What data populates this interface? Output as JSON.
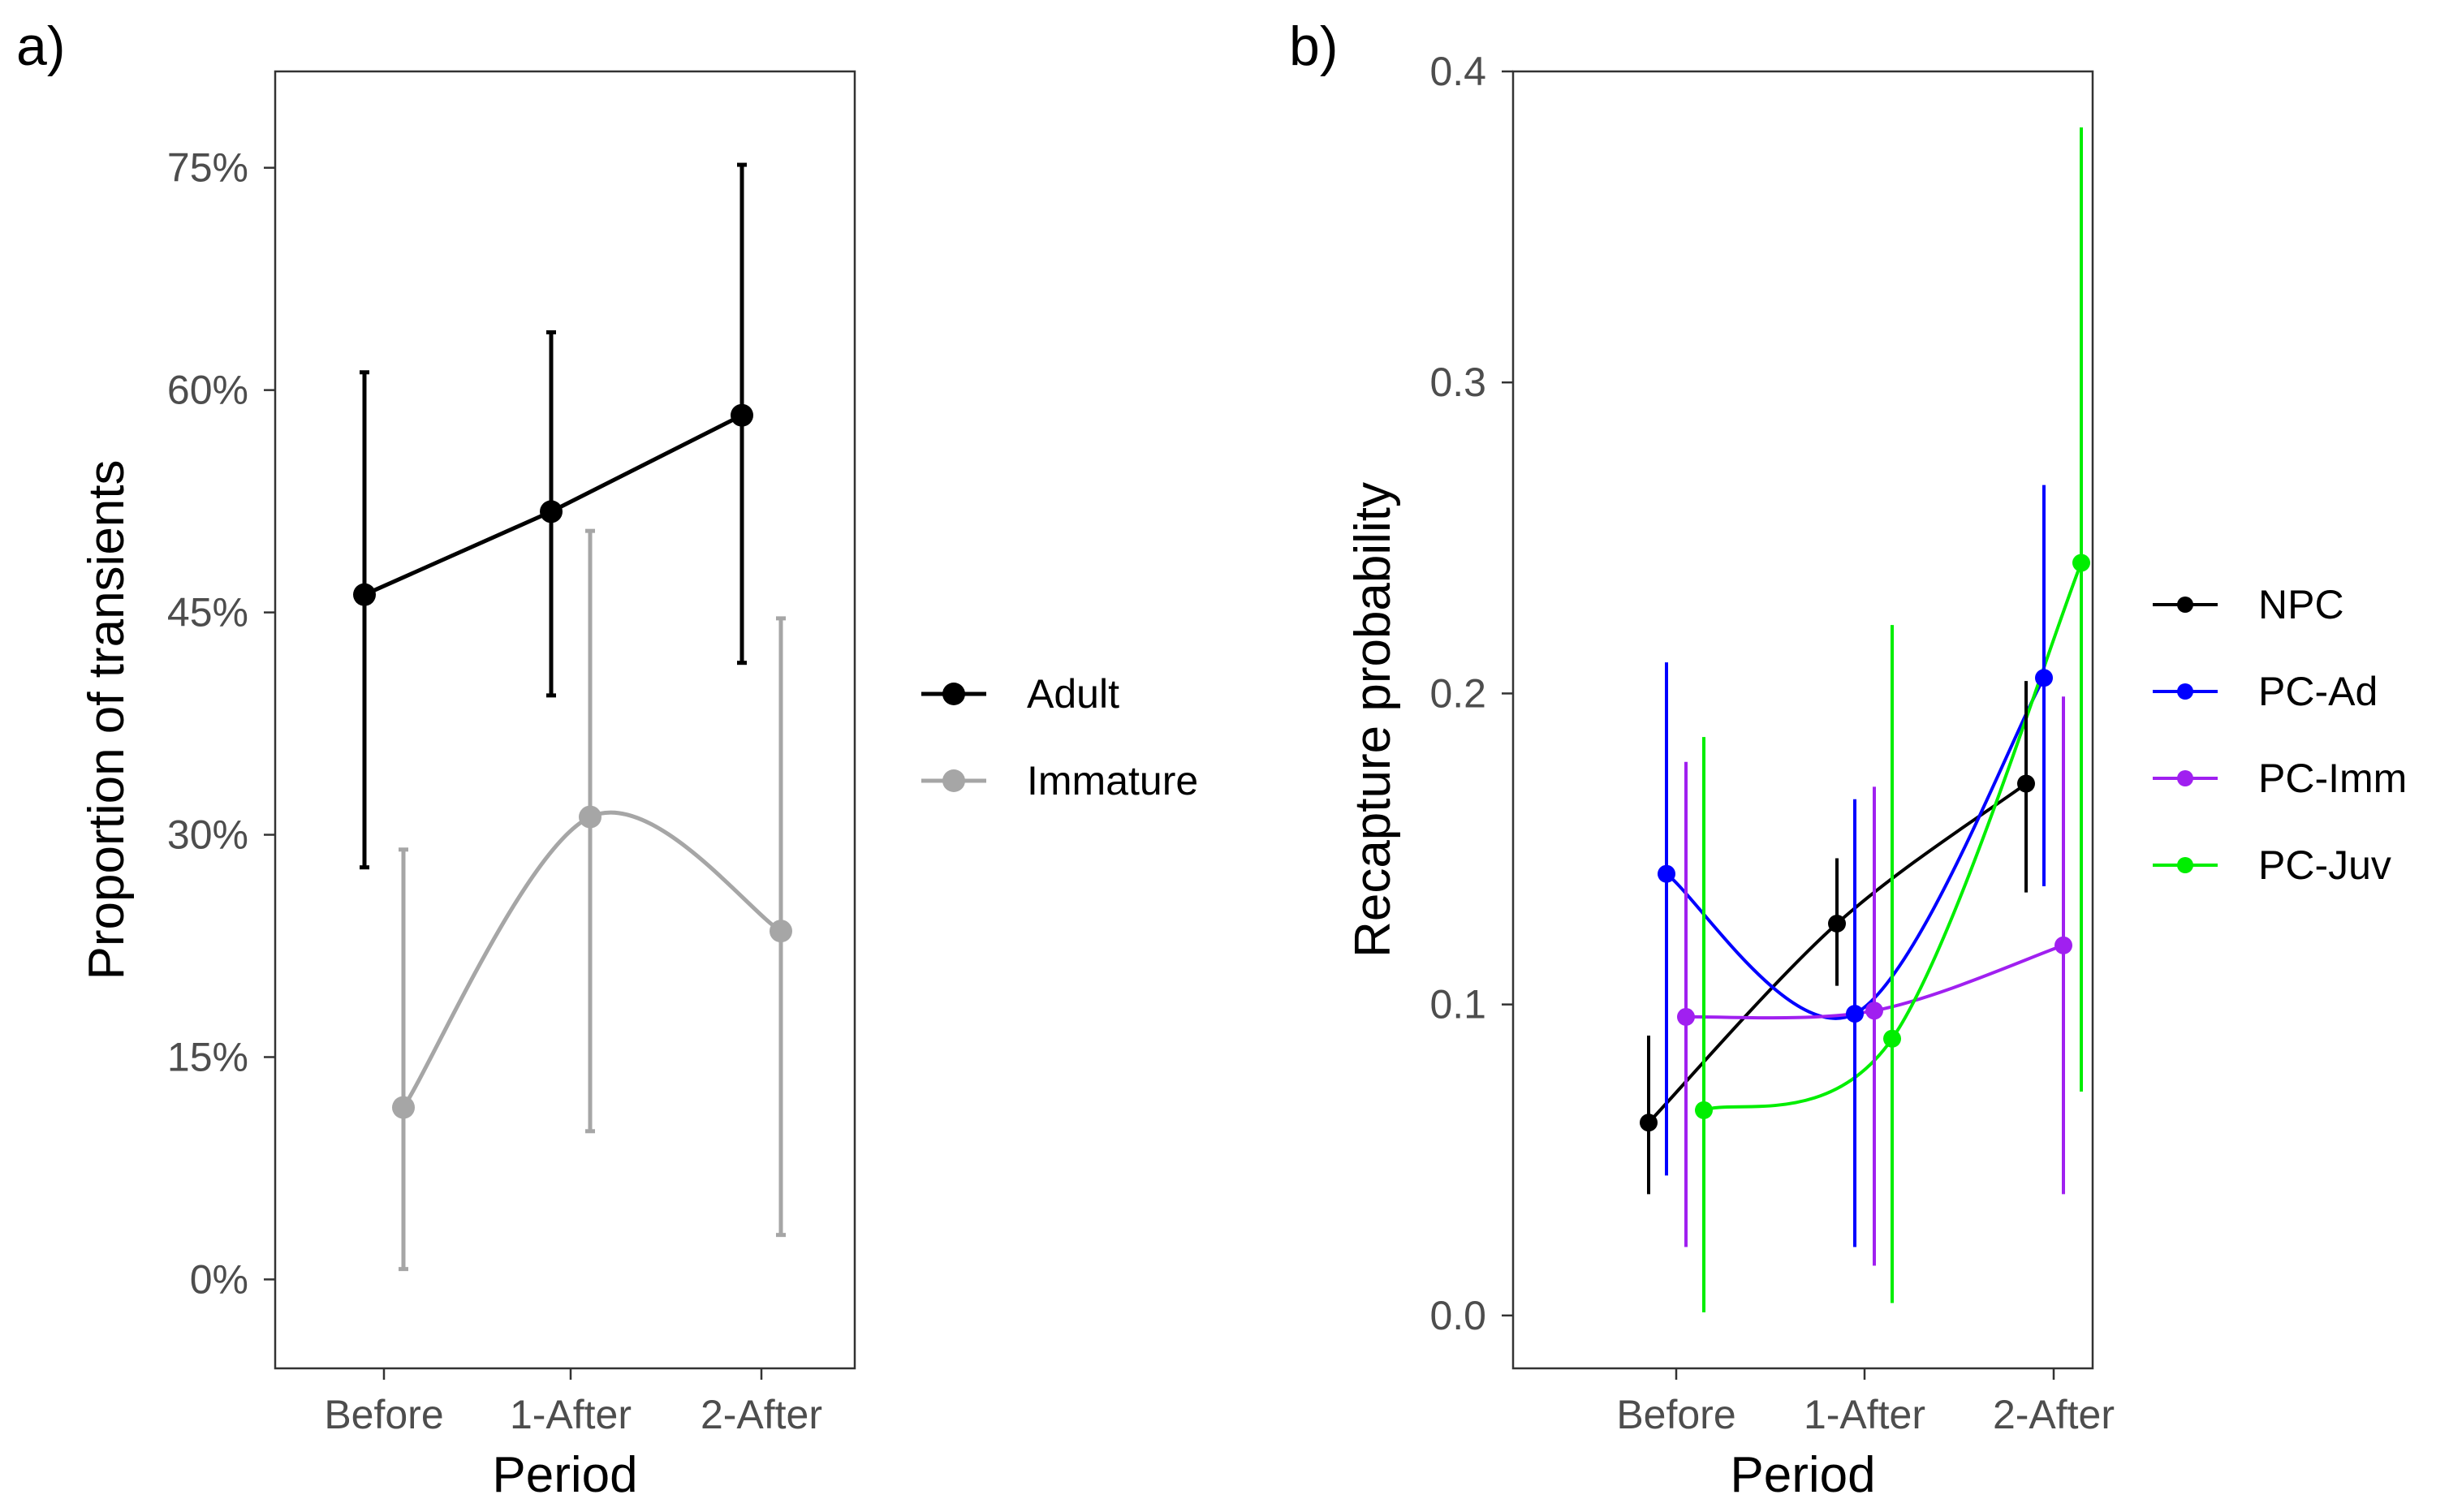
{
  "chart_data": [
    {
      "panel_label": "a)",
      "type": "line",
      "title": "",
      "xlabel": "Period",
      "ylabel": "Proportion of transients",
      "categories": [
        "Before",
        "1-After",
        "2-After"
      ],
      "ylim": [
        -0.06,
        0.815
      ],
      "yticks": [
        0,
        0.15,
        0.3,
        0.45,
        0.6,
        0.75
      ],
      "ytick_labels": [
        "0%",
        "15%",
        "30%",
        "45%",
        "60%",
        "75%"
      ],
      "grid": false,
      "legend_position": "right",
      "series": [
        {
          "name": "Adult",
          "color": "#000000",
          "values": [
            0.462,
            0.518,
            0.583
          ],
          "lower": [
            0.278,
            0.394,
            0.416
          ],
          "upper": [
            0.612,
            0.639,
            0.752
          ]
        },
        {
          "name": "Immature",
          "color": "#a6a6a6",
          "values": [
            0.116,
            0.312,
            0.235
          ],
          "lower": [
            0.007,
            0.1,
            0.03
          ],
          "upper": [
            0.29,
            0.505,
            0.446
          ]
        }
      ]
    },
    {
      "panel_label": "b)",
      "type": "line",
      "title": "",
      "xlabel": "Period",
      "ylabel": "Recapture probability",
      "categories": [
        "Before",
        "1-After",
        "2-After"
      ],
      "ylim": [
        -0.017,
        0.4
      ],
      "yticks": [
        0.0,
        0.1,
        0.2,
        0.3,
        0.4
      ],
      "ytick_labels": [
        "0.0",
        "0.1",
        "0.2",
        "0.3",
        "0.4"
      ],
      "grid": false,
      "legend_position": "right",
      "series": [
        {
          "name": "NPC",
          "color": "#000000",
          "values": [
            0.062,
            0.126,
            0.171
          ],
          "lower": [
            0.039,
            0.106,
            0.136
          ],
          "upper": [
            0.09,
            0.147,
            0.204
          ]
        },
        {
          "name": "PC-Ad",
          "color": "#0000ff",
          "values": [
            0.142,
            0.097,
            0.205
          ],
          "lower": [
            0.045,
            0.022,
            0.138
          ],
          "upper": [
            0.21,
            0.166,
            0.267
          ]
        },
        {
          "name": "PC-Imm",
          "color": "#a020f0",
          "values": [
            0.096,
            0.098,
            0.119
          ],
          "lower": [
            0.022,
            0.016,
            0.039
          ],
          "upper": [
            0.178,
            0.17,
            0.199
          ]
        },
        {
          "name": "PC-Juv",
          "color": "#00ee00",
          "values": [
            0.066,
            0.089,
            0.242
          ],
          "lower": [
            0.001,
            0.004,
            0.072
          ],
          "upper": [
            0.186,
            0.222,
            0.382
          ]
        }
      ]
    }
  ]
}
